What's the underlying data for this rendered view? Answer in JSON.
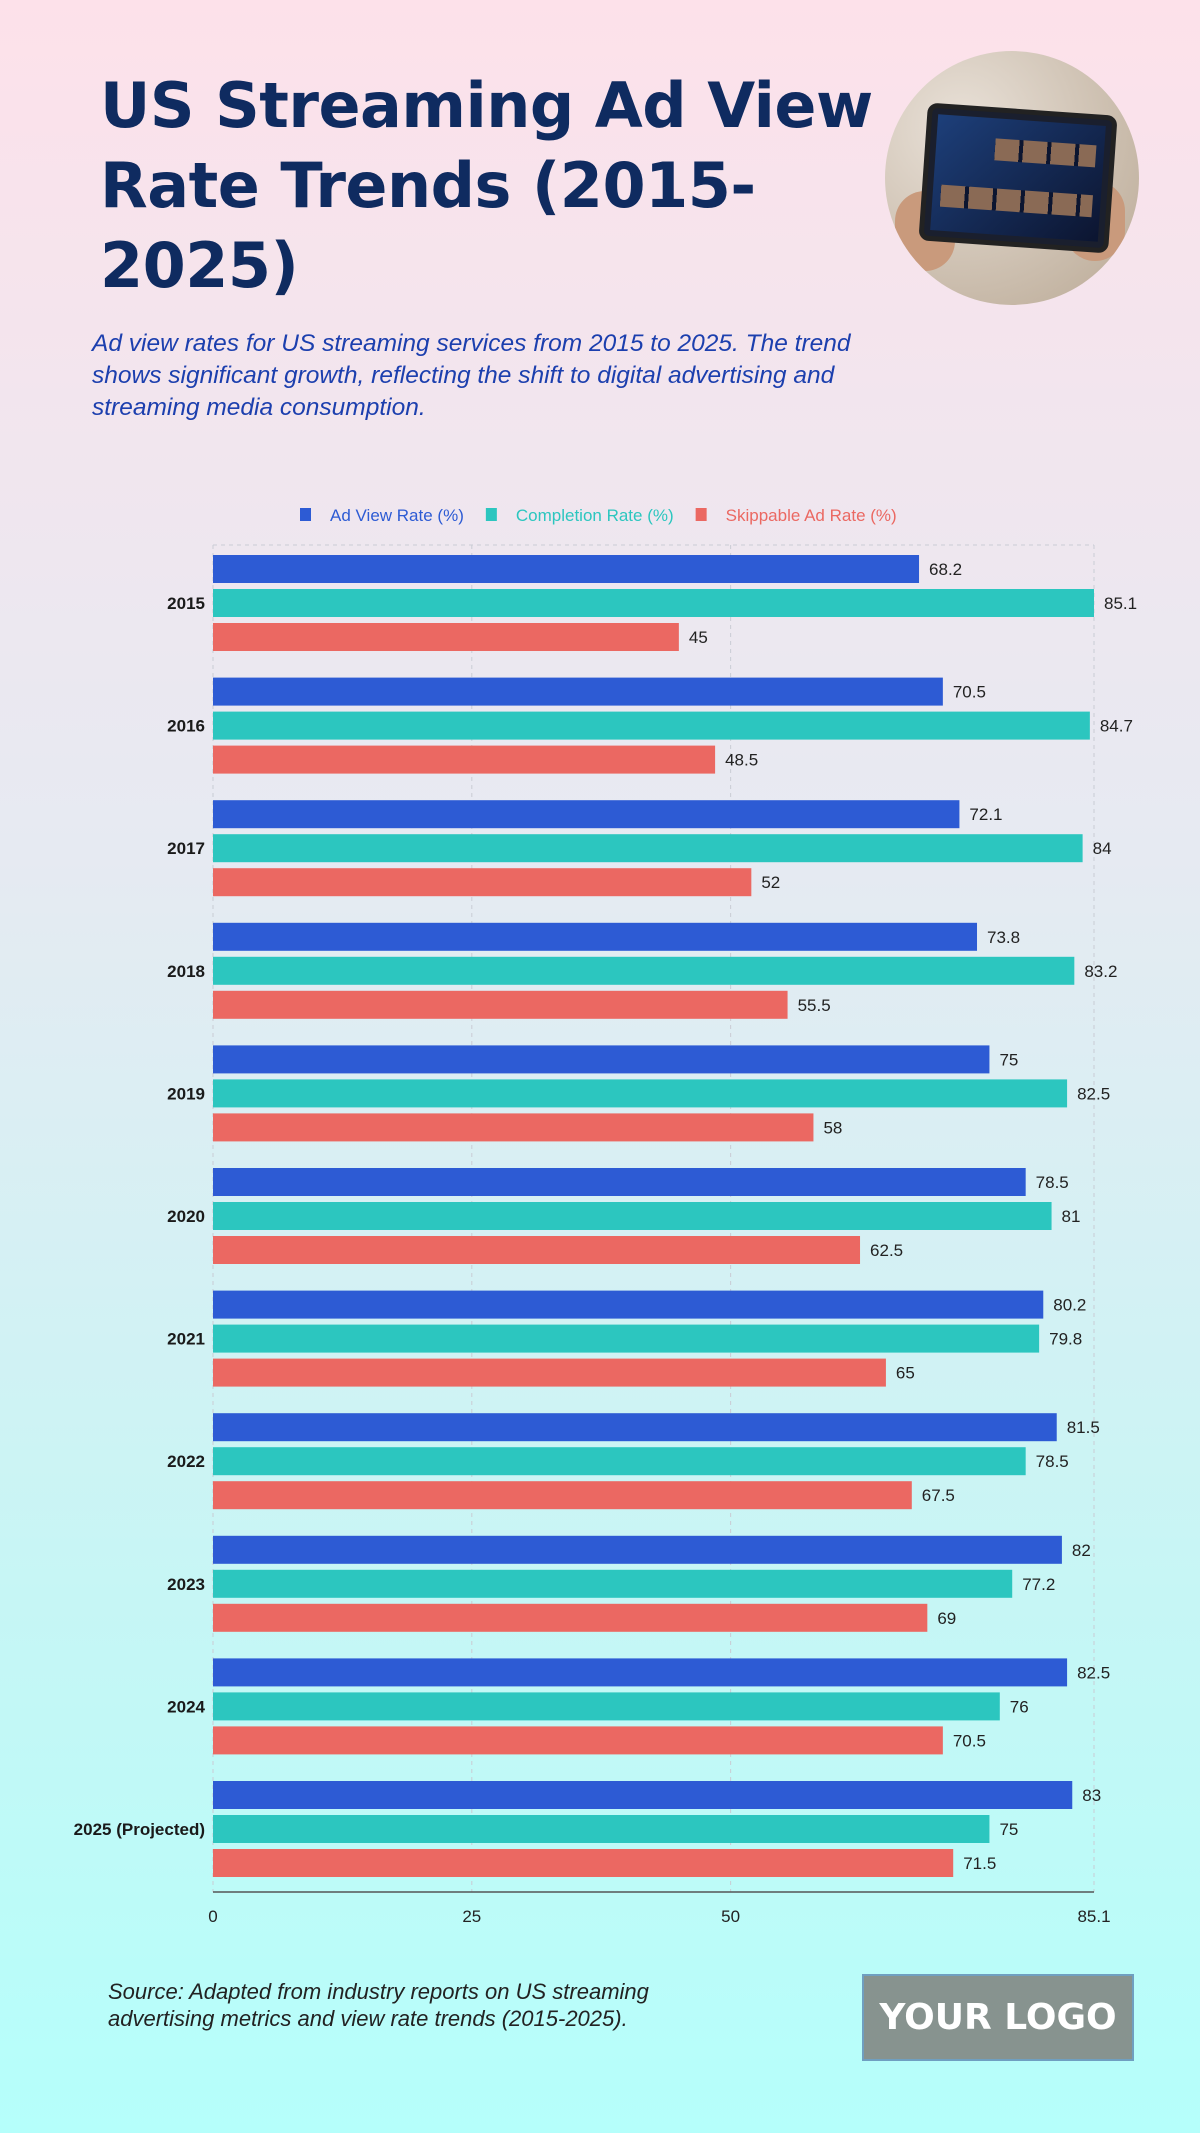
{
  "title": "US Streaming Ad View Rate Trends (2015-2025)",
  "subtitle": "Ad view rates for US streaming services from 2015 to 2025. The trend shows significant growth, reflecting the shift to digital advertising and streaming media consumption.",
  "source": "Source: Adapted from industry reports on US streaming advertising metrics and view rate trends (2015-2025).",
  "logo_text": "YOUR LOGO",
  "chart_data": {
    "type": "bar",
    "orientation": "horizontal",
    "categories": [
      "2015",
      "2016",
      "2017",
      "2018",
      "2019",
      "2020",
      "2021",
      "2022",
      "2023",
      "2024",
      "2025 (Projected)"
    ],
    "series": [
      {
        "name": "Ad View Rate (%)",
        "color": "#2d5bd4",
        "values": [
          68.2,
          70.5,
          72.1,
          73.8,
          75,
          78.5,
          80.2,
          81.5,
          82,
          82.5,
          83
        ]
      },
      {
        "name": "Completion Rate (%)",
        "color": "#2cc6bf",
        "values": [
          85.1,
          84.7,
          84,
          83.2,
          82.5,
          81,
          79.8,
          78.5,
          77.2,
          76,
          75
        ]
      },
      {
        "name": "Skippable Ad Rate (%)",
        "color": "#eb6862",
        "values": [
          45,
          48.5,
          52,
          55.5,
          58,
          62.5,
          65,
          67.5,
          69,
          70.5,
          71.5
        ]
      }
    ],
    "xlim": [
      0,
      85.1
    ],
    "xticks": [
      "0",
      "25",
      "50",
      "85.1"
    ],
    "grid": true,
    "legend": "top-center",
    "data_labels": true
  }
}
